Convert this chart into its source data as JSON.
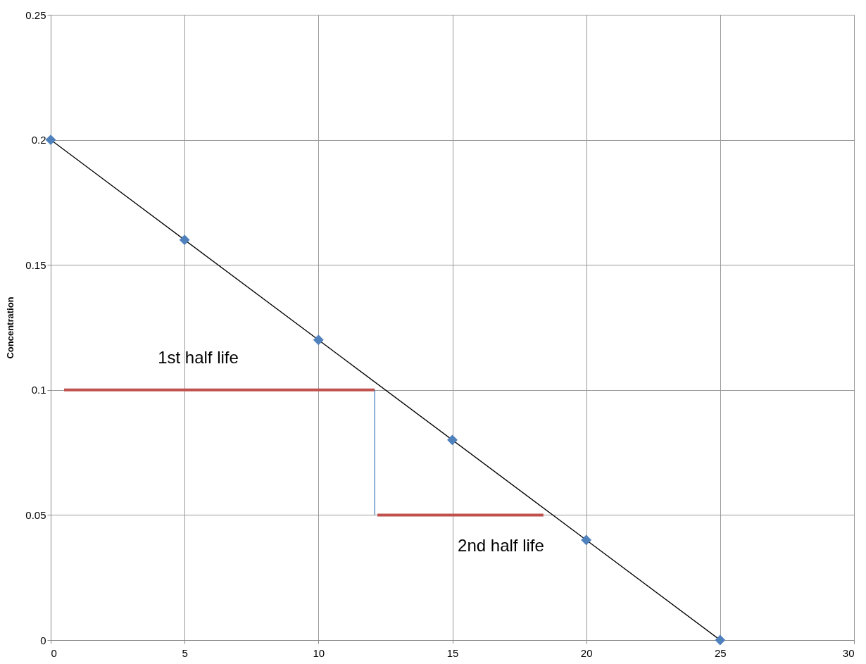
{
  "chart_data": {
    "type": "scatter",
    "ylabel": "Concentration",
    "xlim": [
      0,
      30
    ],
    "xticks": [
      0,
      5,
      10,
      15,
      20,
      25,
      30
    ],
    "ylim": [
      0,
      0.25
    ],
    "yticks": [
      0,
      0.05,
      0.1,
      0.15,
      0.2,
      0.25
    ],
    "grid": true,
    "series": [
      {
        "type": "line",
        "marker": "none",
        "color": "#000000",
        "x": [
          0,
          25
        ],
        "values": [
          0.2,
          0
        ]
      },
      {
        "type": "line",
        "marker": "none",
        "color": "#c0504d",
        "x": [
          0.5,
          12.1
        ],
        "values": [
          0.1,
          0.1
        ]
      },
      {
        "type": "line",
        "marker": "none",
        "color": "#c0504d",
        "x": [
          12.2,
          18.4
        ],
        "values": [
          0.05,
          0.05
        ]
      },
      {
        "type": "line",
        "marker": "none",
        "color": "#4f81bd",
        "x": [
          12.1,
          12.1
        ],
        "values": [
          0.1,
          0.05
        ]
      },
      {
        "marker": "diamond",
        "color": "#4f81bd",
        "x": [
          0,
          5,
          10,
          15,
          20,
          25
        ],
        "values": [
          0.2,
          0.16,
          0.12,
          0.08,
          0.04,
          0
        ]
      }
    ],
    "annotations": [
      {
        "text": "1st half life",
        "x": 4,
        "y": 0.1
      },
      {
        "text": "2nd half life",
        "x": 15.2,
        "y": 0.05
      }
    ]
  }
}
